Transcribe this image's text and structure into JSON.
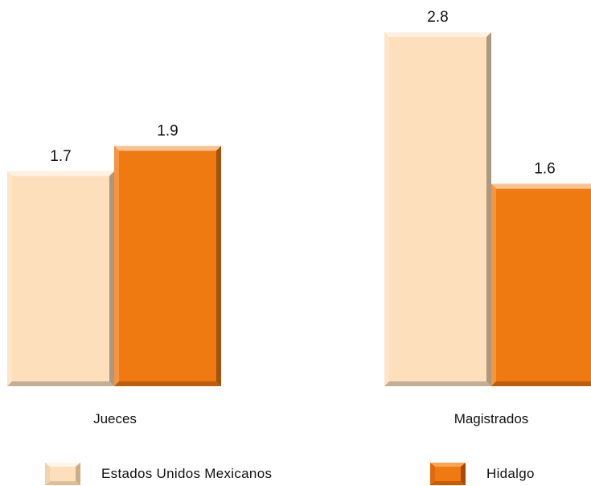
{
  "chart_data": {
    "type": "bar",
    "categories": [
      "Jueces",
      "Magistrados"
    ],
    "series": [
      {
        "name": "Estados Unidos Mexicanos",
        "values": [
          1.7,
          2.8
        ],
        "color": "#FDDFBC",
        "shade": "#DCBE98"
      },
      {
        "name": "Hidalgo",
        "values": [
          1.9,
          1.6
        ],
        "color": "#F07A12",
        "shade": "#C75B08"
      }
    ],
    "value_labels": [
      "1.7",
      "2.8",
      "1.9",
      "1.6"
    ],
    "ylim": [
      0,
      2.8
    ],
    "grid": false,
    "legend": "bottom"
  }
}
